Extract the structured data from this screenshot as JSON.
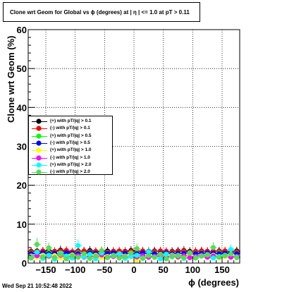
{
  "chart_data": {
    "type": "scatter",
    "title": "Clone wrt Geom for Global vs ϕ (degrees) at |  η | <= 1.0 at pT > 0.11",
    "xlabel": "ϕ (degrees)",
    "ylabel": "Clone wrt Geom (%)",
    "xlim": [
      -180,
      180
    ],
    "ylim": [
      0,
      60
    ],
    "x_ticks": [
      "−150",
      "−100",
      "−50",
      "0",
      "50",
      "100",
      "150"
    ],
    "x_tick_values": [
      -150,
      -100,
      -50,
      0,
      50,
      100,
      150
    ],
    "y_ticks": [
      "0",
      "10",
      "20",
      "30",
      "40",
      "50",
      "60"
    ],
    "y_tick_values": [
      0,
      10,
      20,
      30,
      40,
      50,
      60
    ],
    "grid": true,
    "legend_position": "left",
    "x": [
      -175,
      -165,
      -155,
      -145,
      -135,
      -125,
      -115,
      -105,
      -95,
      -85,
      -75,
      -65,
      -55,
      -45,
      -35,
      -25,
      -15,
      -5,
      5,
      15,
      25,
      35,
      45,
      55,
      65,
      75,
      85,
      95,
      105,
      115,
      125,
      135,
      145,
      155,
      165,
      175
    ],
    "series": [
      {
        "name": "(+) with pT/|q| > 0.1",
        "color": "#000000",
        "marker": "circle",
        "values": [
          3.0,
          3.1,
          2.9,
          3.2,
          3.0,
          3.3,
          3.0,
          2.8,
          3.1,
          3.0,
          3.2,
          2.9,
          3.0,
          3.1,
          3.0,
          2.8,
          3.0,
          3.2,
          3.1,
          2.9,
          3.0,
          3.1,
          3.0,
          2.9,
          3.0,
          3.1,
          3.2,
          3.0,
          2.9,
          3.1,
          3.0,
          3.0,
          3.1,
          2.9,
          3.0,
          3.1
        ]
      },
      {
        "name": "(-) with pT/|q| > 0.1",
        "color": "#ff0000",
        "marker": "circle",
        "values": [
          2.9,
          3.0,
          3.1,
          2.8,
          3.0,
          3.1,
          3.2,
          2.9,
          3.0,
          3.1,
          2.9,
          3.0,
          3.1,
          2.8,
          3.0,
          3.1,
          2.9,
          3.0,
          3.0,
          3.1,
          2.9,
          3.0,
          3.1,
          3.0,
          2.9,
          3.0,
          3.1,
          2.8,
          3.0,
          3.1,
          3.0,
          2.9,
          3.0,
          3.1,
          3.0,
          2.9
        ]
      },
      {
        "name": "(+) with pT/|q| > 0.5",
        "color": "#00ff00",
        "marker": "circle",
        "values": [
          2.5,
          2.6,
          2.4,
          2.7,
          2.5,
          2.6,
          2.5,
          2.4,
          2.6,
          2.5,
          2.7,
          2.4,
          2.5,
          2.6,
          2.5,
          2.4,
          2.5,
          2.6,
          2.5,
          2.4,
          2.6,
          2.5,
          2.4,
          2.6,
          2.5,
          2.5,
          2.6,
          2.4,
          2.5,
          2.6,
          2.5,
          2.4,
          2.6,
          2.5,
          2.4,
          2.5
        ]
      },
      {
        "name": "(-) with pT/|q| > 0.5",
        "color": "#0000ff",
        "marker": "circle",
        "values": [
          2.4,
          2.5,
          2.6,
          2.4,
          2.5,
          2.4,
          2.6,
          2.5,
          2.4,
          2.5,
          2.6,
          2.5,
          2.4,
          2.5,
          2.6,
          2.4,
          2.5,
          2.5,
          2.4,
          2.6,
          2.5,
          2.4,
          2.5,
          2.6,
          2.4,
          2.5,
          2.5,
          2.6,
          2.4,
          2.5,
          2.6,
          2.5,
          2.4,
          2.5,
          2.6,
          2.4
        ]
      },
      {
        "name": "(+) with pT/|q| > 1.0",
        "color": "#ffff00",
        "marker": "circle",
        "values": [
          1.8,
          1.5,
          2.0,
          1.6,
          1.9,
          1.4,
          1.7,
          2.1,
          1.5,
          1.8,
          1.6,
          2.0,
          1.4,
          1.7,
          1.9,
          1.5,
          1.8,
          1.6,
          0.8,
          1.7,
          1.9,
          1.5,
          1.8,
          1.6,
          2.0,
          1.4,
          1.7,
          1.9,
          1.5,
          1.8,
          1.6,
          2.0,
          1.4,
          1.7,
          1.9,
          1.6
        ]
      },
      {
        "name": "(-) with pT/|q| > 1.0",
        "color": "#ff00ff",
        "marker": "circle",
        "values": [
          1.6,
          1.9,
          1.5,
          1.8,
          1.4,
          2.0,
          1.6,
          1.7,
          1.9,
          1.5,
          1.8,
          1.6,
          2.1,
          1.5,
          1.7,
          1.9,
          1.4,
          1.8,
          1.6,
          1.9,
          1.5,
          1.7,
          2.0,
          1.5,
          1.8,
          1.6,
          1.9,
          1.4,
          1.7,
          2.0,
          1.5,
          1.8,
          1.6,
          1.9,
          1.5,
          1.7
        ]
      },
      {
        "name": "(+) with pT/|q| > 2.0",
        "color": "#00ffff",
        "marker": "circle",
        "values": [
          1.5,
          2.8,
          1.2,
          2.0,
          1.0,
          2.5,
          1.8,
          1.3,
          4.5,
          1.6,
          2.2,
          1.1,
          2.6,
          1.4,
          1.9,
          2.4,
          1.2,
          1.7,
          2.0,
          1.3,
          2.9,
          1.5,
          1.1,
          2.3,
          1.6,
          1.9,
          1.2,
          2.6,
          1.4,
          1.8,
          2.2,
          1.3,
          1.7,
          2.0,
          3.5,
          1.5
        ]
      },
      {
        "name": "(-) with pT/|q| > 2.0",
        "color": "#55dd55",
        "marker": "circle",
        "values": [
          1.3,
          4.8,
          1.6,
          3.9,
          1.4,
          2.2,
          1.1,
          1.9,
          1.5,
          2.4,
          1.2,
          1.8,
          3.2,
          1.4,
          2.0,
          1.3,
          1.7,
          2.6,
          3.7,
          1.2,
          1.9,
          1.5,
          2.3,
          1.1,
          1.7,
          2.0,
          1.4,
          2.5,
          1.3,
          1.8,
          2.1,
          4.0,
          1.5,
          1.9,
          2.3,
          1.4
        ]
      }
    ]
  },
  "date_stamp": "Wed Sep 21 10:52:48 2022"
}
